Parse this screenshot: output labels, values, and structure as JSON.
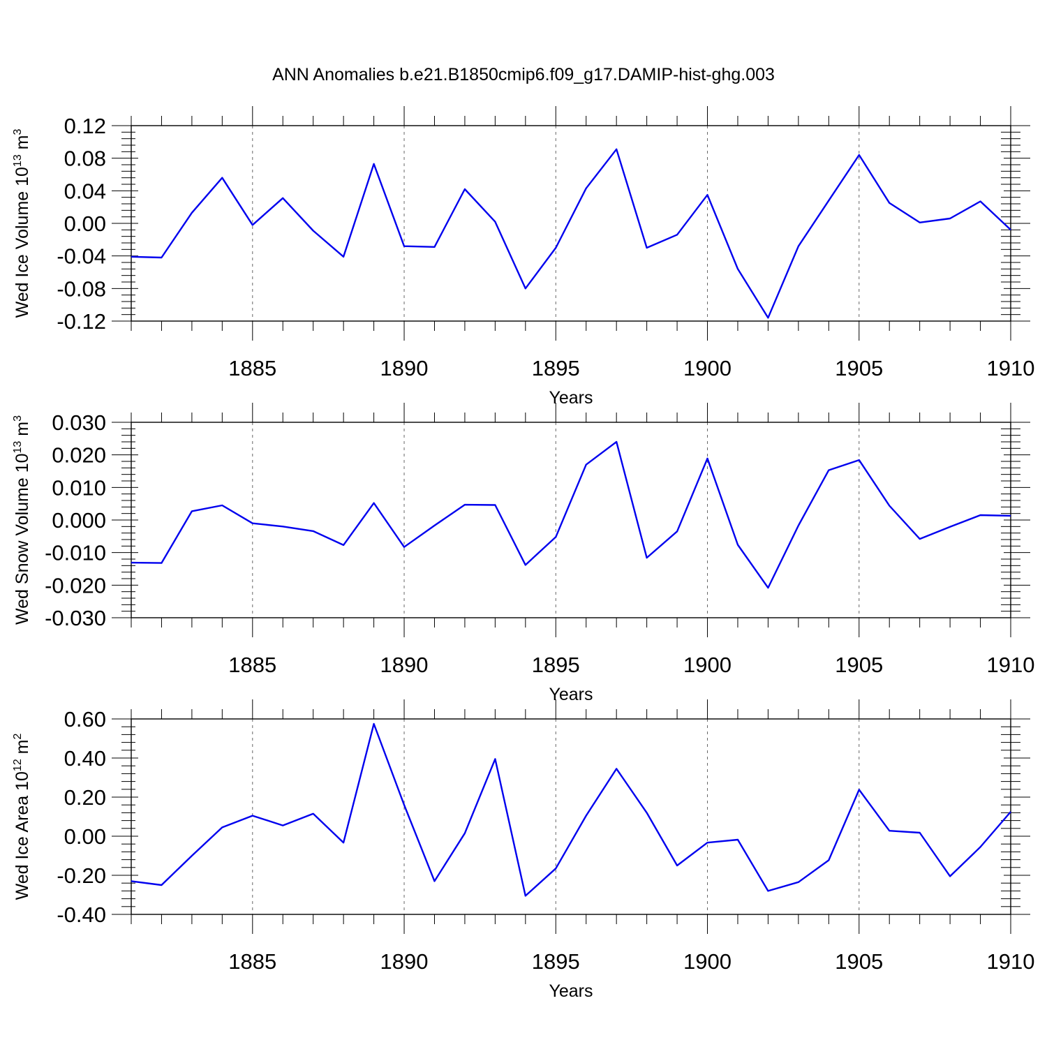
{
  "title": "ANN Anomalies b.e21.B1850cmip6.f09_g17.DAMIP-hist-ghg.003",
  "chart_data": [
    {
      "type": "line",
      "name": "ice-volume",
      "ylabel": "Wed Ice Volume",
      "yunit": {
        "base": "10",
        "exp": "13",
        "unit": "m",
        "unit_exp": "3"
      },
      "xlabel": "Years",
      "xlim": [
        1881,
        1910
      ],
      "ylim": [
        -0.12,
        0.12
      ],
      "yticks": [
        "-0.12",
        "-0.08",
        "-0.04",
        "0.00",
        "0.04",
        "0.08",
        "0.12"
      ],
      "xticks": [
        "1885",
        "1890",
        "1895",
        "1900",
        "1905",
        "1910"
      ],
      "x": [
        1881,
        1882,
        1883,
        1884,
        1885,
        1886,
        1887,
        1888,
        1889,
        1890,
        1891,
        1892,
        1893,
        1894,
        1895,
        1896,
        1897,
        1898,
        1899,
        1900,
        1901,
        1902,
        1903,
        1904,
        1905,
        1906,
        1907,
        1908,
        1909,
        1910
      ],
      "values": [
        -0.041,
        -0.042,
        0.013,
        0.056,
        -0.002,
        0.031,
        -0.009,
        -0.041,
        0.073,
        -0.028,
        -0.029,
        0.042,
        0.002,
        -0.08,
        -0.03,
        0.043,
        0.091,
        -0.03,
        -0.014,
        0.035,
        -0.056,
        -0.116,
        -0.028,
        0.028,
        0.084,
        0.025,
        0.001,
        0.006,
        0.027,
        -0.008
      ]
    },
    {
      "type": "line",
      "name": "snow-volume",
      "ylabel": "Wed Snow Volume",
      "yunit": {
        "base": "10",
        "exp": "13",
        "unit": "m",
        "unit_exp": "3"
      },
      "xlabel": "Years",
      "xlim": [
        1881,
        1910
      ],
      "ylim": [
        -0.03,
        0.03
      ],
      "yticks": [
        "-0.030",
        "-0.020",
        "-0.010",
        "0.000",
        "0.010",
        "0.020",
        "0.030"
      ],
      "xticks": [
        "1885",
        "1890",
        "1895",
        "1900",
        "1905",
        "1910"
      ],
      "x": [
        1881,
        1882,
        1883,
        1884,
        1885,
        1886,
        1887,
        1888,
        1889,
        1890,
        1891,
        1892,
        1893,
        1894,
        1895,
        1896,
        1897,
        1898,
        1899,
        1900,
        1901,
        1902,
        1903,
        1904,
        1905,
        1906,
        1907,
        1908,
        1909,
        1910
      ],
      "values": [
        -0.0131,
        -0.0132,
        0.0027,
        0.0045,
        -0.001,
        -0.002,
        -0.0034,
        -0.0077,
        0.0052,
        -0.0083,
        -0.0017,
        0.0047,
        0.0046,
        -0.0138,
        -0.0052,
        0.017,
        0.024,
        -0.0116,
        -0.0035,
        0.0189,
        -0.0076,
        -0.0208,
        -0.0017,
        0.0153,
        0.0184,
        0.0044,
        -0.0058,
        -0.0021,
        0.0015,
        0.0013
      ]
    },
    {
      "type": "line",
      "name": "ice-area",
      "ylabel": "Wed Ice Area",
      "yunit": {
        "base": "10",
        "exp": "12",
        "unit": "m",
        "unit_exp": "2"
      },
      "xlabel": "Years",
      "xlim": [
        1881,
        1910
      ],
      "ylim": [
        -0.4,
        0.6
      ],
      "yticks": [
        "-0.40",
        "-0.20",
        "0.00",
        "0.20",
        "0.40",
        "0.60"
      ],
      "xticks": [
        "1885",
        "1890",
        "1895",
        "1900",
        "1905",
        "1910"
      ],
      "x": [
        1881,
        1882,
        1883,
        1884,
        1885,
        1886,
        1887,
        1888,
        1889,
        1890,
        1891,
        1892,
        1893,
        1894,
        1895,
        1896,
        1897,
        1898,
        1899,
        1900,
        1901,
        1902,
        1903,
        1904,
        1905,
        1906,
        1907,
        1908,
        1909,
        1910
      ],
      "values": [
        -0.23,
        -0.25,
        -0.1,
        0.045,
        0.105,
        0.055,
        0.115,
        -0.033,
        0.575,
        0.16,
        -0.23,
        0.015,
        0.395,
        -0.305,
        -0.165,
        0.105,
        0.345,
        0.12,
        -0.15,
        -0.033,
        -0.018,
        -0.28,
        -0.235,
        -0.123,
        0.238,
        0.028,
        0.018,
        -0.205,
        -0.055,
        0.125
      ]
    }
  ]
}
